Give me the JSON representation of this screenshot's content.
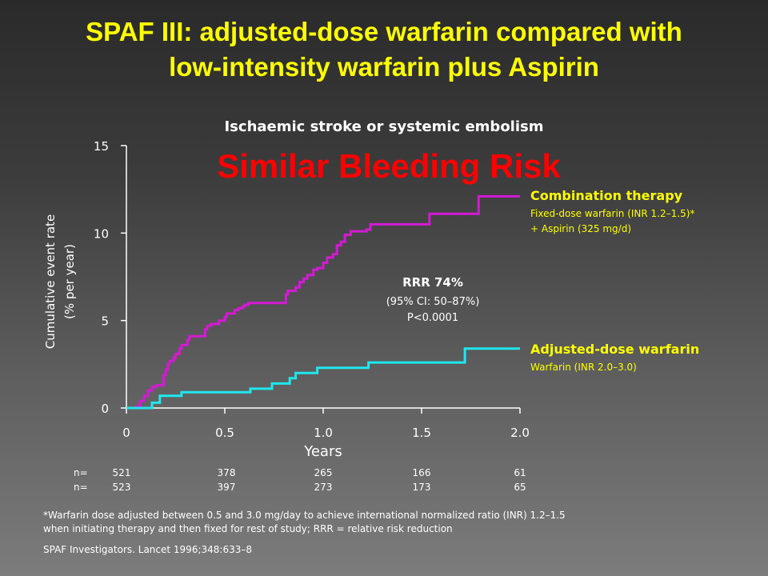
{
  "slide": {
    "title_line1": "SPAF III: adjusted-dose warfarin compared with",
    "title_line2": "low-intensity warfarin plus Aspirin",
    "footnote_line1": "*Warfarin dose adjusted between 0.5 and 3.0 mg/day to achieve international normalized ratio (INR) 1.2–1.5",
    "footnote_line2": "when initiating therapy and then fixed for rest of study; RRR = relative risk reduction",
    "citation": "SPAF Investigators. Lancet 1996;348:633–8"
  },
  "chart_data": {
    "type": "line",
    "step": true,
    "title": "Ischaemic stroke or systemic embolism",
    "overlay_text": "Similar Bleeding Risk",
    "xlabel": "Years",
    "ylabel_line1": "Cumulative event rate",
    "ylabel_line2": "(% per year)",
    "xlim": [
      0,
      2.0
    ],
    "ylim": [
      0,
      15
    ],
    "x_ticks": [
      "0",
      "0.5",
      "1.0",
      "1.5",
      "2.0"
    ],
    "y_ticks": [
      "0",
      "5",
      "10",
      "15"
    ],
    "grid": false,
    "annotation": {
      "line1": "RRR 74%",
      "line2": "(95% CI: 50–87%)",
      "line3": "P<0.0001"
    },
    "series": [
      {
        "name": "Combination therapy",
        "label_line1": "Fixed-dose warfarin (INR 1.2–1.5)*",
        "label_line2": "+ Aspirin (325 mg/d)",
        "color": "#d41ad4",
        "x": [
          0,
          0.05,
          0.07,
          0.09,
          0.11,
          0.13,
          0.15,
          0.19,
          0.2,
          0.21,
          0.22,
          0.24,
          0.25,
          0.27,
          0.28,
          0.31,
          0.32,
          0.35,
          0.4,
          0.41,
          0.43,
          0.45,
          0.47,
          0.5,
          0.51,
          0.55,
          0.57,
          0.59,
          0.6,
          0.62,
          0.81,
          0.82,
          0.86,
          0.88,
          0.9,
          0.92,
          0.95,
          0.97,
          1.0,
          1.02,
          1.05,
          1.07,
          1.09,
          1.11,
          1.14,
          1.22,
          1.24,
          1.54,
          1.79,
          1.99
        ],
        "y": [
          0,
          0.1,
          0.4,
          0.7,
          1.0,
          1.2,
          1.3,
          1.9,
          2.2,
          2.5,
          2.7,
          2.9,
          3.1,
          3.4,
          3.6,
          3.9,
          4.1,
          4.1,
          4.5,
          4.7,
          4.8,
          4.8,
          5.0,
          5.2,
          5.4,
          5.6,
          5.7,
          5.8,
          5.9,
          6.0,
          6.5,
          6.7,
          6.9,
          7.2,
          7.4,
          7.6,
          7.9,
          8.0,
          8.3,
          8.6,
          8.8,
          9.3,
          9.5,
          9.9,
          10.1,
          10.2,
          10.5,
          11.1,
          12.1,
          12.1
        ]
      },
      {
        "name": "Adjusted-dose warfarin",
        "label_line1": "Warfarin (INR 2.0–3.0)",
        "label_line2": "",
        "color": "#1ee8ee",
        "x": [
          0,
          0.13,
          0.17,
          0.28,
          0.63,
          0.74,
          0.83,
          0.86,
          0.97,
          1.23,
          1.72,
          1.99
        ],
        "y": [
          0,
          0.3,
          0.7,
          0.9,
          1.1,
          1.4,
          1.7,
          2.0,
          2.3,
          2.6,
          3.4,
          3.4
        ]
      }
    ],
    "at_risk": {
      "label": "n=",
      "rows": [
        [
          "521",
          "378",
          "265",
          "166",
          "61"
        ],
        [
          "523",
          "397",
          "273",
          "173",
          "65"
        ]
      ]
    },
    "colors": {
      "axis": "#ffffff",
      "series_label": "#ffff00",
      "overlay_text": "#ff0000"
    }
  }
}
